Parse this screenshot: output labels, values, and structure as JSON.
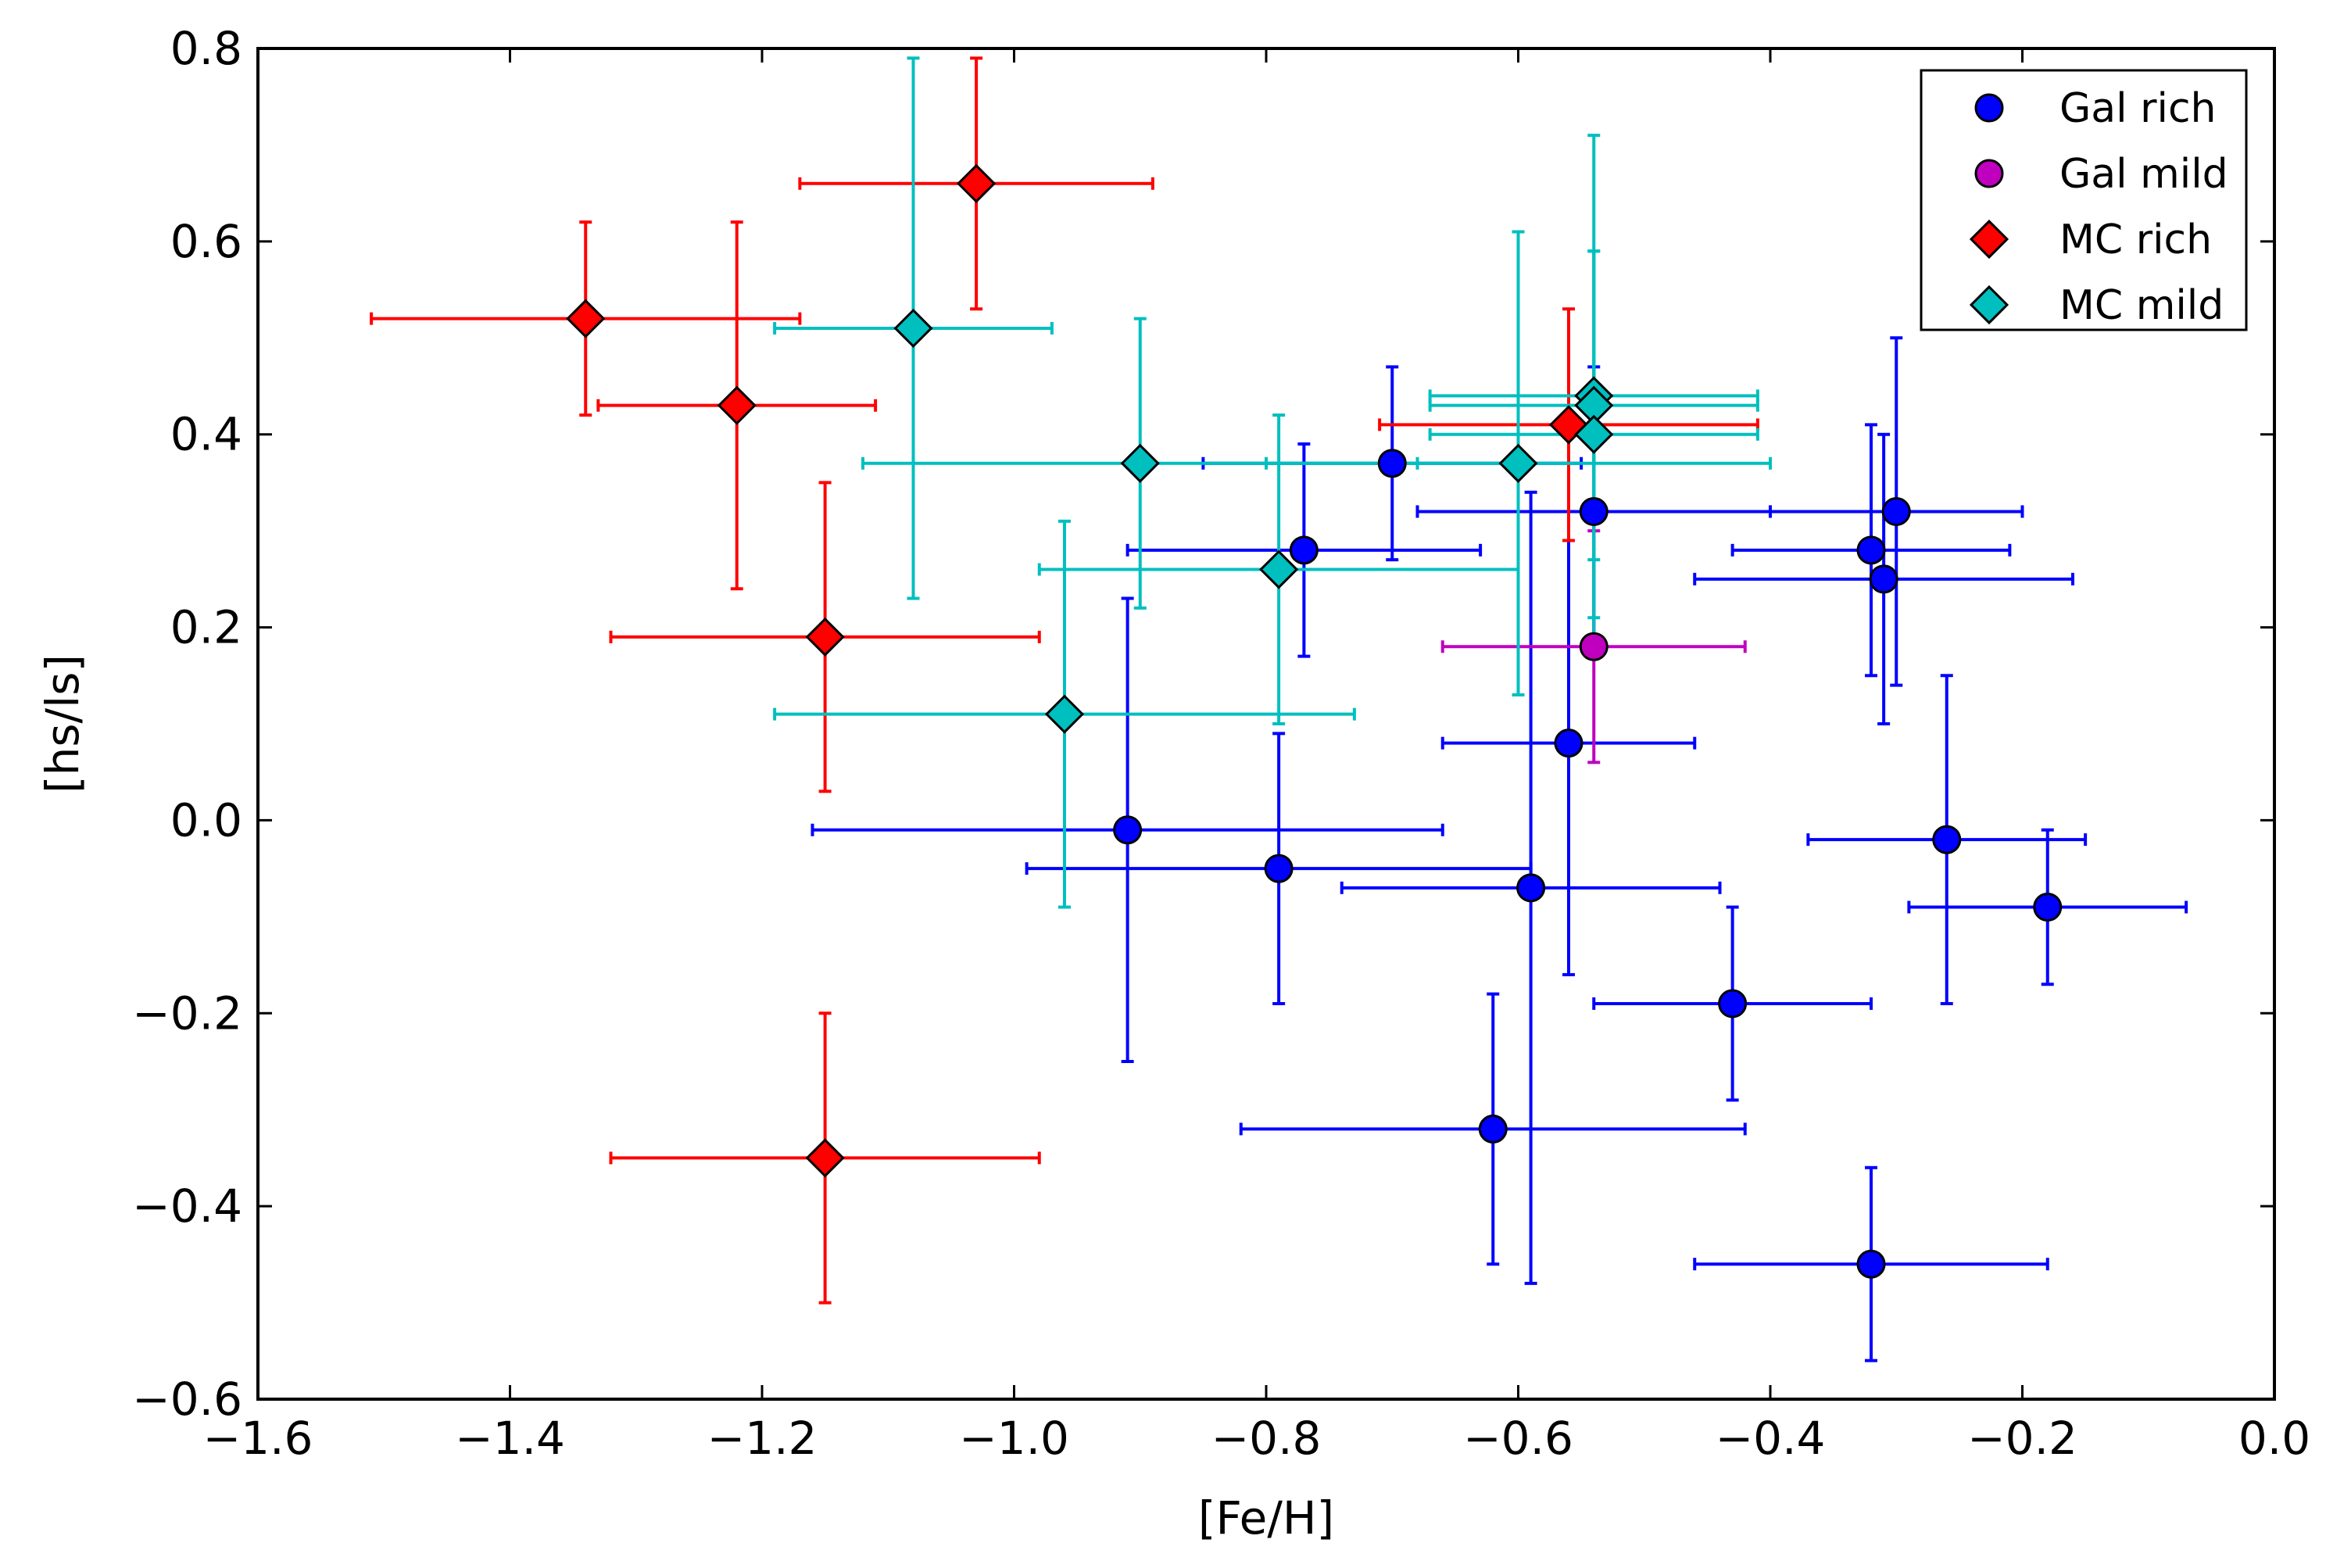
{
  "chart_data": {
    "type": "scatter",
    "title": "",
    "xlabel": "[Fe/H]",
    "ylabel": "[hs/ls]",
    "xlim": [
      -1.6,
      0.0
    ],
    "ylim": [
      -0.6,
      0.8
    ],
    "xticks": [
      -1.6,
      -1.4,
      -1.2,
      -1.0,
      -0.8,
      -0.6,
      -0.4,
      -0.2,
      0.0
    ],
    "yticks": [
      -0.6,
      -0.4,
      -0.2,
      0.0,
      0.2,
      0.4,
      0.6,
      0.8
    ],
    "xtick_labels": [
      "−1.6",
      "−1.4",
      "−1.2",
      "−1.0",
      "−0.8",
      "−0.6",
      "−0.4",
      "−0.2",
      "0.0"
    ],
    "ytick_labels": [
      "−0.6",
      "−0.4",
      "−0.2",
      "0.0",
      "0.2",
      "0.4",
      "0.6",
      "0.8"
    ],
    "grid": false,
    "legend_position": "top-right",
    "series": [
      {
        "name": "Gal rich",
        "marker": "circle",
        "color": "#0000ff",
        "points": [
          {
            "x": -0.91,
            "y": -0.01,
            "xerr": 0.25,
            "yerr": 0.24
          },
          {
            "x": -0.79,
            "y": -0.05,
            "xerr": 0.2,
            "yerr": 0.14
          },
          {
            "x": -0.77,
            "y": 0.28,
            "xerr": 0.14,
            "yerr": 0.11
          },
          {
            "x": -0.7,
            "y": 0.37,
            "xerr": 0.15,
            "yerr": 0.1
          },
          {
            "x": -0.62,
            "y": -0.32,
            "xerr": 0.2,
            "yerr": 0.14
          },
          {
            "x": -0.59,
            "y": -0.07,
            "xerr": 0.15,
            "yerr": 0.41
          },
          {
            "x": -0.56,
            "y": 0.08,
            "xerr": 0.1,
            "yerr": 0.24
          },
          {
            "x": -0.54,
            "y": 0.32,
            "xerr": 0.14,
            "yerr": 0.15
          },
          {
            "x": -0.43,
            "y": -0.19,
            "xerr": 0.11,
            "yerr": 0.1
          },
          {
            "x": -0.32,
            "y": 0.28,
            "xerr": 0.11,
            "yerr": 0.13
          },
          {
            "x": -0.31,
            "y": 0.25,
            "xerr": 0.15,
            "yerr": 0.15
          },
          {
            "x": -0.3,
            "y": 0.32,
            "xerr": 0.1,
            "yerr": 0.18
          },
          {
            "x": -0.26,
            "y": -0.02,
            "xerr": 0.11,
            "yerr": 0.17
          },
          {
            "x": -0.18,
            "y": -0.09,
            "xerr": 0.11,
            "yerr": 0.08
          },
          {
            "x": -0.32,
            "y": -0.46,
            "xerr": 0.14,
            "yerr": 0.1
          }
        ]
      },
      {
        "name": "Gal mild",
        "marker": "circle",
        "color": "#bf00bf",
        "points": [
          {
            "x": -0.54,
            "y": 0.18,
            "xerr": 0.12,
            "yerr": 0.12
          }
        ]
      },
      {
        "name": "MC rich",
        "marker": "diamond",
        "color": "#ff0000",
        "points": [
          {
            "x": -1.34,
            "y": 0.52,
            "xerr": 0.17,
            "yerr": 0.1
          },
          {
            "x": -1.22,
            "y": 0.43,
            "xerr": 0.11,
            "yerr": 0.19
          },
          {
            "x": -1.03,
            "y": 0.66,
            "xerr": 0.14,
            "yerr": 0.13
          },
          {
            "x": -1.15,
            "y": 0.19,
            "xerr": 0.17,
            "yerr": 0.16
          },
          {
            "x": -1.15,
            "y": -0.35,
            "xerr": 0.17,
            "yerr": 0.15
          },
          {
            "x": -0.56,
            "y": 0.41,
            "xerr": 0.15,
            "yerr": 0.12
          }
        ]
      },
      {
        "name": "MC mild",
        "marker": "diamond",
        "color": "#00bfbf",
        "points": [
          {
            "x": -1.08,
            "y": 0.51,
            "xerr": 0.11,
            "yerr": 0.28
          },
          {
            "x": -0.9,
            "y": 0.37,
            "xerr": 0.22,
            "yerr": 0.15
          },
          {
            "x": -0.96,
            "y": 0.11,
            "xerr": 0.23,
            "yerr": 0.2
          },
          {
            "x": -0.79,
            "y": 0.26,
            "xerr": 0.19,
            "yerr": 0.16
          },
          {
            "x": -0.6,
            "y": 0.37,
            "xerr": 0.2,
            "yerr": 0.24
          },
          {
            "x": -0.54,
            "y": 0.44,
            "xerr": 0.13,
            "yerr": 0.27
          },
          {
            "x": -0.54,
            "y": 0.43,
            "xerr": 0.13,
            "yerr": 0.16
          },
          {
            "x": -0.54,
            "y": 0.4,
            "xerr": 0.13,
            "yerr": 0.19
          }
        ]
      }
    ]
  }
}
